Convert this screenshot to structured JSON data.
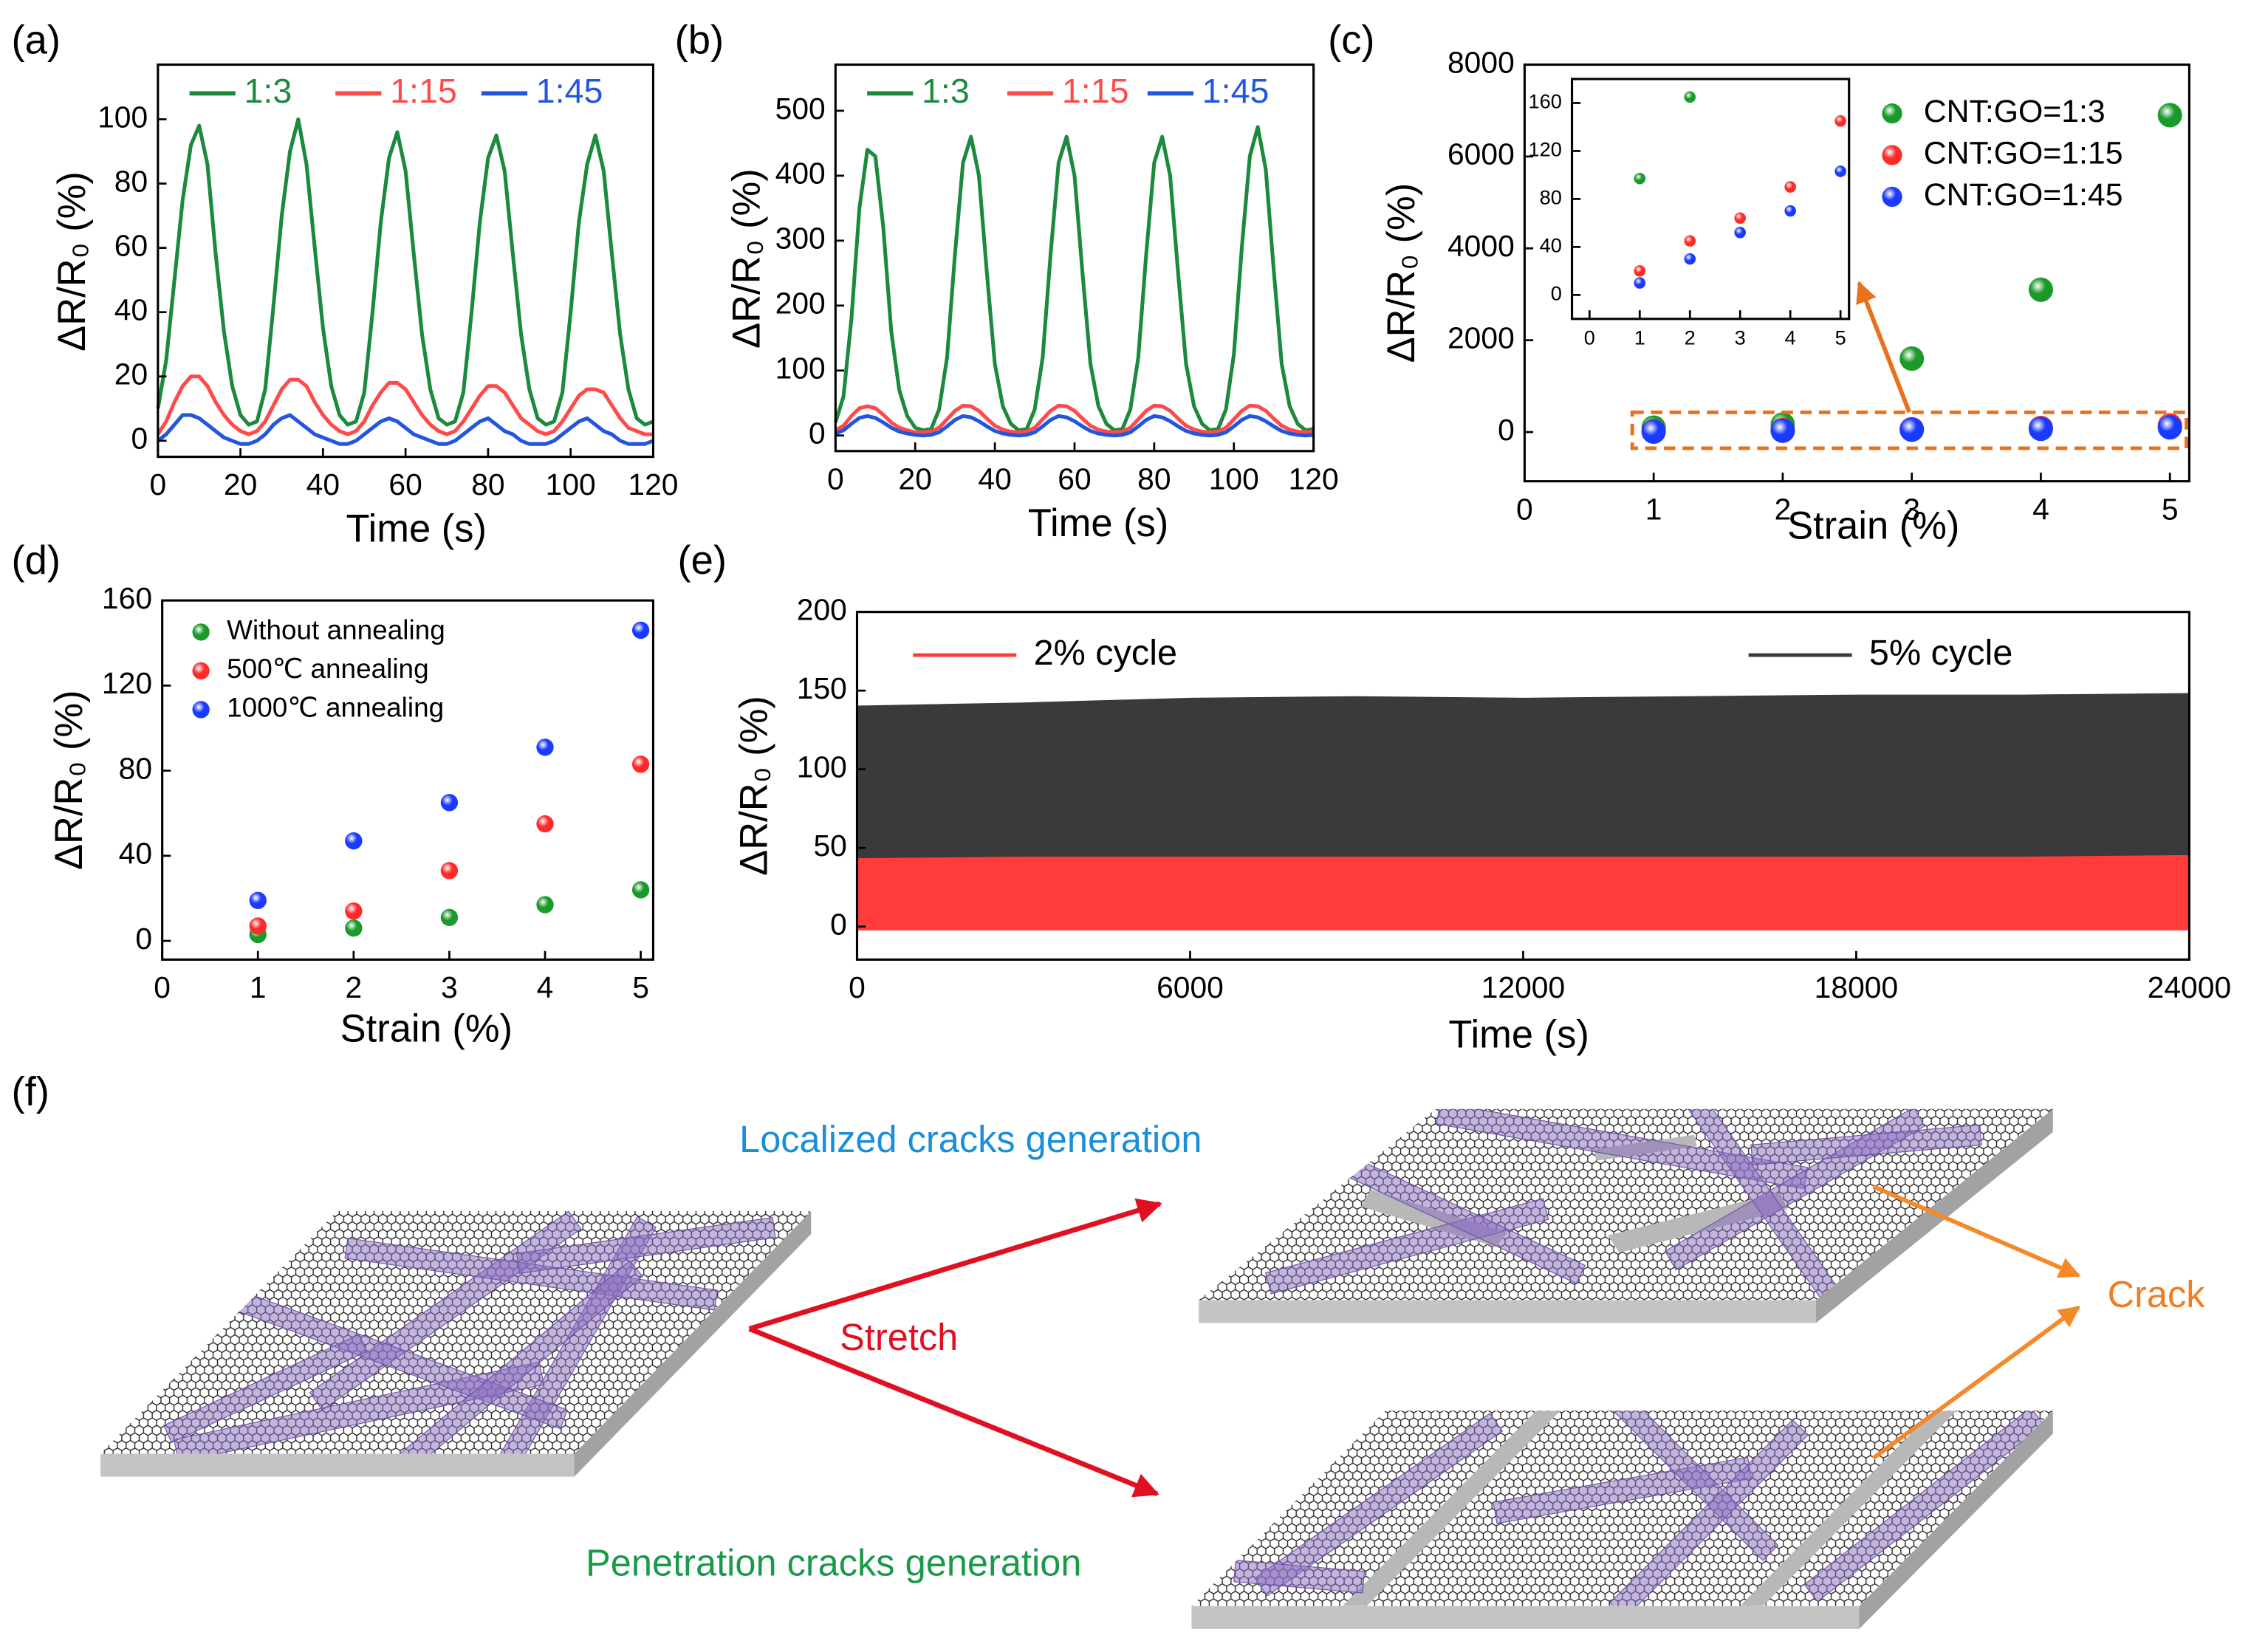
{
  "chart_data": [
    {
      "type": "line",
      "panel": "(a)",
      "xlabel": "Time (s)",
      "ylabel": "ΔR/R₀ (%)",
      "legend": "upper center",
      "x": [
        0,
        2,
        4,
        6,
        8,
        10,
        12,
        14,
        16,
        18,
        20,
        22,
        24,
        26,
        28,
        30,
        32,
        34,
        36,
        38,
        40,
        42,
        44,
        46,
        48,
        50,
        52,
        54,
        56,
        58,
        60,
        62,
        64,
        66,
        68,
        70,
        72,
        74,
        76,
        78,
        80,
        82,
        84,
        86,
        88,
        90,
        92,
        94,
        96,
        98,
        100,
        102,
        104,
        106,
        108,
        110,
        112,
        114,
        116,
        118,
        120
      ],
      "xlim": [
        0,
        120
      ],
      "xticks": [
        0,
        20,
        40,
        60,
        80,
        100,
        120
      ],
      "ylim": [
        -5,
        117
      ],
      "yticks": [
        0,
        20,
        40,
        60,
        80,
        100
      ],
      "series": [
        {
          "name": "1:3",
          "color": "#1b8a3c",
          "values": [
            10,
            25,
            50,
            75,
            92,
            98,
            86,
            58,
            34,
            17,
            8,
            5,
            6,
            16,
            42,
            70,
            90,
            100,
            86,
            60,
            35,
            17,
            8,
            5,
            6,
            15,
            40,
            68,
            88,
            96,
            84,
            58,
            33,
            16,
            7,
            5,
            6,
            15,
            40,
            68,
            88,
            95,
            84,
            58,
            33,
            16,
            7,
            5,
            6,
            15,
            40,
            68,
            86,
            95,
            84,
            58,
            33,
            16,
            7,
            5,
            6
          ]
        },
        {
          "name": "1:15",
          "color": "#ff4a4a",
          "values": [
            2,
            6,
            12,
            17,
            20,
            20,
            17,
            12,
            8,
            5,
            3,
            2,
            3,
            6,
            11,
            16,
            19,
            19,
            17,
            12,
            8,
            5,
            3,
            2,
            3,
            6,
            11,
            15,
            18,
            18,
            16,
            12,
            8,
            5,
            3,
            2,
            3,
            6,
            10,
            14,
            17,
            17,
            15,
            11,
            7,
            5,
            3,
            2,
            3,
            6,
            10,
            14,
            16,
            16,
            15,
            11,
            7,
            4,
            3,
            2,
            2
          ]
        },
        {
          "name": "1:45",
          "color": "#2255e0",
          "values": [
            0,
            2,
            5,
            8,
            8,
            7,
            5,
            3,
            1,
            0,
            -1,
            -1,
            0,
            2,
            5,
            7,
            8,
            6,
            4,
            2,
            1,
            0,
            -1,
            -1,
            0,
            2,
            4,
            6,
            7,
            6,
            4,
            2,
            1,
            0,
            -1,
            -1,
            0,
            2,
            4,
            6,
            7,
            5,
            3,
            2,
            0,
            -1,
            -1,
            -1,
            0,
            2,
            4,
            6,
            7,
            5,
            3,
            2,
            0,
            -1,
            -1,
            -1,
            0
          ]
        }
      ]
    },
    {
      "type": "line",
      "panel": "(b)",
      "xlabel": "Time (s)",
      "ylabel": "ΔR/R₀ (%)",
      "legend": "upper center",
      "x": [
        0,
        2,
        4,
        6,
        8,
        10,
        12,
        14,
        16,
        18,
        20,
        22,
        24,
        26,
        28,
        30,
        32,
        34,
        36,
        38,
        40,
        42,
        44,
        46,
        48,
        50,
        52,
        54,
        56,
        58,
        60,
        62,
        64,
        66,
        68,
        70,
        72,
        74,
        76,
        78,
        80,
        82,
        84,
        86,
        88,
        90,
        92,
        94,
        96,
        98,
        100,
        102,
        104,
        106,
        108,
        110,
        112,
        114,
        116,
        118,
        120
      ],
      "xlim": [
        0,
        120
      ],
      "xticks": [
        0,
        20,
        40,
        60,
        80,
        100,
        120
      ],
      "ylim": [
        -24,
        571
      ],
      "yticks": [
        0,
        100,
        200,
        300,
        400,
        500
      ],
      "series": [
        {
          "name": "1:3",
          "color": "#1b8a3c",
          "values": [
            20,
            60,
            180,
            350,
            440,
            430,
            320,
            160,
            70,
            30,
            12,
            8,
            10,
            40,
            120,
            280,
            420,
            460,
            400,
            250,
            110,
            45,
            18,
            8,
            10,
            40,
            120,
            280,
            420,
            460,
            400,
            250,
            110,
            45,
            18,
            8,
            10,
            40,
            120,
            280,
            420,
            460,
            400,
            250,
            110,
            45,
            18,
            8,
            10,
            40,
            125,
            290,
            430,
            475,
            410,
            255,
            110,
            45,
            18,
            8,
            10
          ]
        },
        {
          "name": "1:15",
          "color": "#ff4a4a",
          "values": [
            8,
            15,
            30,
            42,
            45,
            42,
            32,
            20,
            12,
            8,
            5,
            5,
            6,
            12,
            25,
            38,
            46,
            45,
            38,
            26,
            15,
            9,
            6,
            5,
            6,
            12,
            25,
            38,
            46,
            45,
            38,
            26,
            15,
            9,
            6,
            5,
            6,
            12,
            25,
            38,
            46,
            45,
            38,
            26,
            15,
            9,
            6,
            5,
            6,
            12,
            25,
            38,
            46,
            45,
            38,
            26,
            15,
            9,
            6,
            5,
            6
          ]
        },
        {
          "name": "1:45",
          "color": "#2255e0",
          "values": [
            3,
            8,
            18,
            27,
            30,
            27,
            20,
            12,
            6,
            3,
            1,
            0,
            1,
            5,
            14,
            24,
            30,
            28,
            22,
            14,
            7,
            3,
            1,
            0,
            1,
            5,
            14,
            24,
            30,
            28,
            22,
            14,
            7,
            3,
            1,
            0,
            1,
            5,
            14,
            24,
            30,
            28,
            22,
            14,
            7,
            3,
            1,
            0,
            1,
            5,
            14,
            24,
            30,
            28,
            22,
            14,
            7,
            3,
            1,
            0,
            1
          ]
        }
      ]
    },
    {
      "type": "scatter",
      "panel": "(c)",
      "xlabel": "Strain (%)",
      "ylabel": "ΔR/R₀ (%)",
      "legend": "upper right",
      "x": [
        1,
        2,
        3,
        4,
        5
      ],
      "xlim": [
        0,
        5.15
      ],
      "xticks": [
        0,
        1,
        2,
        3,
        4,
        5
      ],
      "ylim": [
        -1070,
        8000
      ],
      "yticks": [
        0,
        2000,
        4000,
        6000,
        8000
      ],
      "series": [
        {
          "name": "CNT:GO=1:3",
          "color": "#1a9a2a",
          "values": [
            97,
            165,
            1600,
            3100,
            6900
          ]
        },
        {
          "name": "CNT:GO=1:15",
          "color": "#ff2a2a",
          "values": [
            20,
            45,
            64,
            90,
            145
          ]
        },
        {
          "name": "CNT:GO=1:45",
          "color": "#1a3aff",
          "values": [
            10,
            30,
            52,
            70,
            103
          ]
        }
      ],
      "inset": {
        "xlim": [
          -0.35,
          5.17
        ],
        "xticks": [
          0,
          1,
          2,
          3,
          4,
          5
        ],
        "ylim": [
          -20,
          180
        ],
        "yticks": [
          0,
          40,
          80,
          120,
          160
        ]
      }
    },
    {
      "type": "scatter",
      "panel": "(d)",
      "xlabel": "Strain (%)",
      "ylabel": "ΔR/R₀ (%)",
      "legend": "upper left",
      "x": [
        1,
        2,
        3,
        4,
        5
      ],
      "xlim": [
        0,
        5.13
      ],
      "xticks": [
        0,
        1,
        2,
        3,
        4,
        5
      ],
      "ylim": [
        -8.8,
        160
      ],
      "yticks": [
        0,
        40,
        80,
        120,
        160
      ],
      "series": [
        {
          "name": "Without annealing",
          "color": "#1a9a2a",
          "values": [
            3,
            6,
            11,
            17,
            24
          ]
        },
        {
          "name": "500℃ annealing",
          "color": "#ff2a2a",
          "values": [
            7,
            14,
            33,
            55,
            83
          ]
        },
        {
          "name": "1000℃ annealing",
          "color": "#1a3aff",
          "values": [
            19,
            47,
            65,
            91,
            146
          ]
        }
      ]
    },
    {
      "type": "area",
      "panel": "(e)",
      "xlabel": "Time (s)",
      "ylabel": "ΔR/R₀ (%)",
      "legend": "top",
      "x": [
        0,
        3000,
        6000,
        9000,
        12000,
        15000,
        18000,
        21000,
        24000
      ],
      "xlim": [
        0,
        24000
      ],
      "xticks": [
        0,
        6000,
        12000,
        18000,
        24000
      ],
      "ylim": [
        -21,
        200
      ],
      "yticks": [
        0,
        50,
        100,
        150,
        200
      ],
      "series": [
        {
          "name": "5% cycle",
          "color": "#3a3a3a",
          "values": [
            140,
            142,
            145,
            146,
            145,
            146,
            147,
            147,
            148
          ],
          "lower": [
            0,
            0,
            0,
            0,
            0,
            0,
            0,
            0,
            0
          ]
        },
        {
          "name": "2% cycle",
          "color": "#ff3b3b",
          "values": [
            43,
            44,
            44,
            44,
            44,
            44,
            44,
            44,
            45
          ],
          "lower": [
            -2,
            -2,
            -2,
            -2,
            -2,
            -2,
            -2,
            -2,
            -2
          ]
        }
      ]
    }
  ],
  "diagram": {
    "panel": "(f)",
    "localized": "Localized cracks generation",
    "stretch": "Stretch",
    "crack": "Crack",
    "penetration": "Penetration cracks generation"
  }
}
